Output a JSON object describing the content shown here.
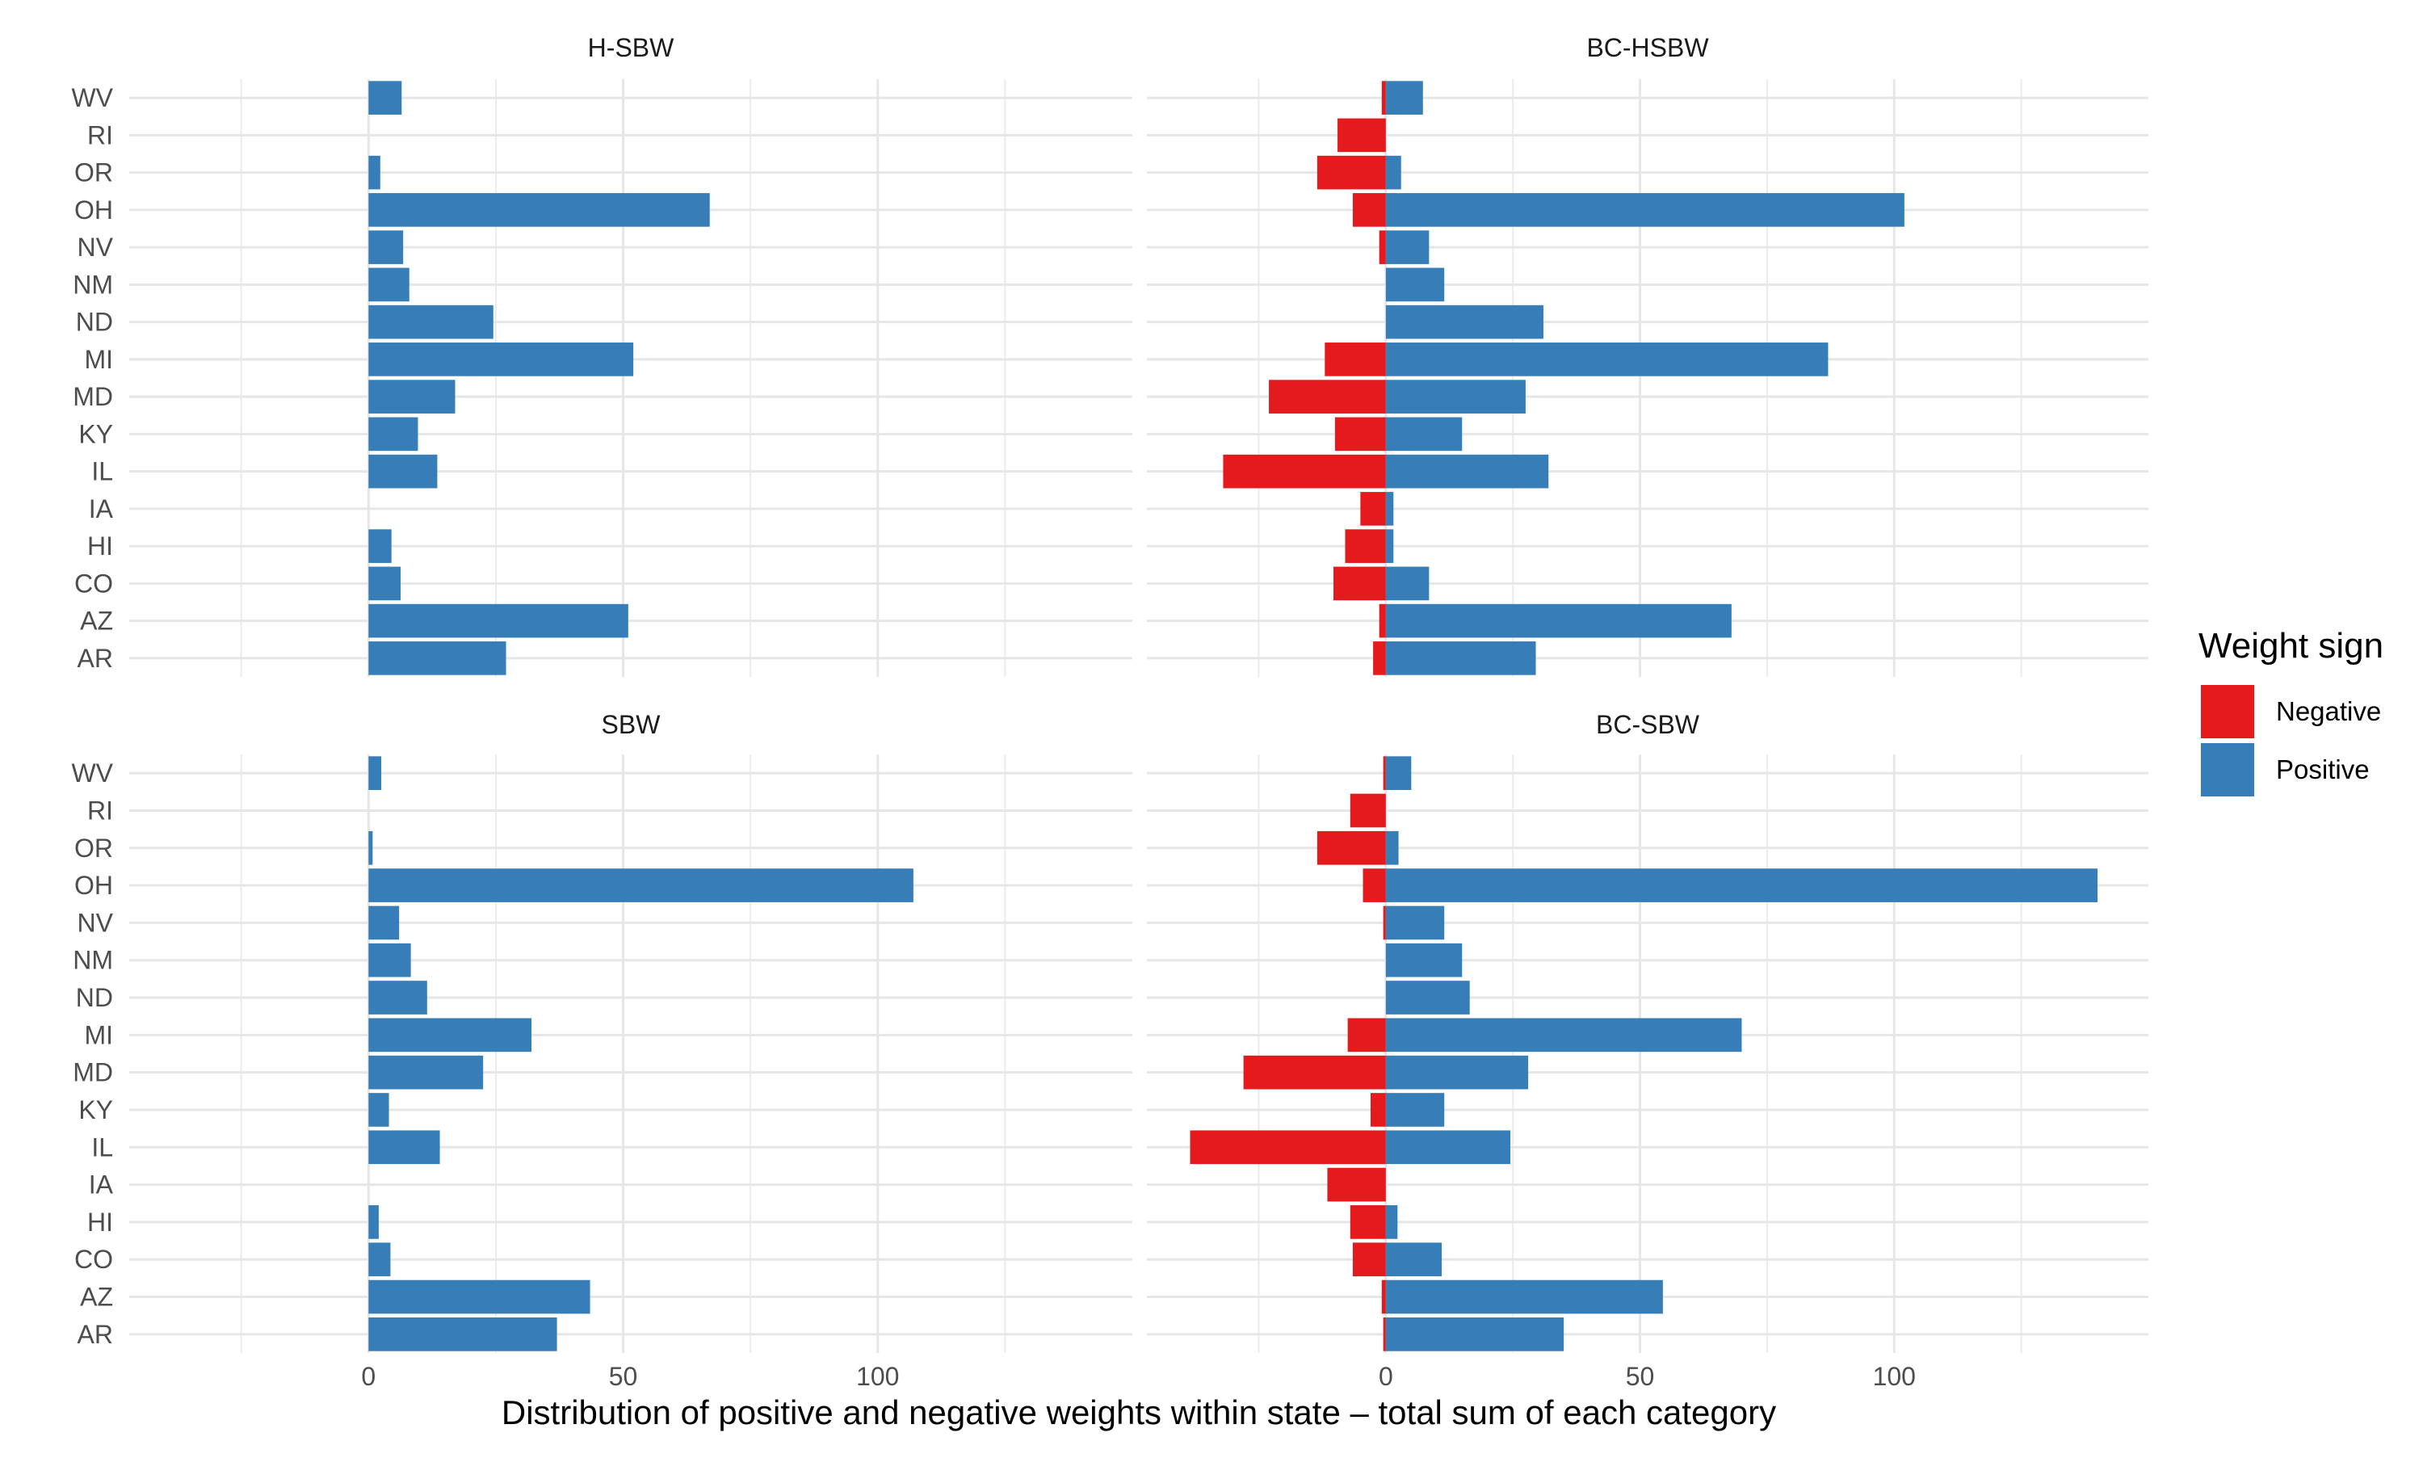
{
  "chart_data": {
    "type": "bar",
    "orientation": "horizontal",
    "layout": "2x2 facets",
    "xlabel": "Distribution of positive and negative weights within state – total sum of each category",
    "ylabel": "",
    "x_ticks": [
      0,
      50,
      100
    ],
    "grid": true,
    "legend": {
      "title": "Weight sign",
      "position": "right",
      "entries": [
        {
          "label": "Negative",
          "color": "#e41a1c"
        },
        {
          "label": "Positive",
          "color": "#377eb8"
        }
      ]
    },
    "categories": [
      "WV",
      "RI",
      "OR",
      "OH",
      "NV",
      "NM",
      "ND",
      "MI",
      "MD",
      "KY",
      "IL",
      "IA",
      "HI",
      "CO",
      "AZ",
      "AR"
    ],
    "panels": [
      {
        "title": "H-SBW",
        "xlim": [
          -47,
          150
        ],
        "series": [
          {
            "name": "Negative",
            "values": [
              0,
              0,
              0,
              0,
              0,
              0,
              0,
              0,
              0,
              0,
              0,
              0,
              0,
              0,
              0,
              0
            ]
          },
          {
            "name": "Positive",
            "values": [
              6.5,
              0,
              2.3,
              67,
              6.8,
              8,
              24.5,
              52,
              17,
              9.7,
              13.5,
              0,
              4.5,
              6.3,
              51,
              27
            ]
          }
        ]
      },
      {
        "title": "BC-HSBW",
        "xlim": [
          -47,
          150
        ],
        "series": [
          {
            "name": "Negative",
            "values": [
              -0.8,
              -9.5,
              -13.5,
              -6.5,
              -1.3,
              0,
              0,
              -12,
              -23,
              -10,
              -32,
              -5,
              -8,
              -10.3,
              -1.3,
              -2.5
            ]
          },
          {
            "name": "Positive",
            "values": [
              7.3,
              0,
              3,
              102,
              8.5,
              11.5,
              31,
              87,
              27.5,
              15,
              32,
              1.5,
              1.5,
              8.5,
              68,
              29.5
            ]
          }
        ]
      },
      {
        "title": "SBW",
        "xlim": [
          -47,
          150
        ],
        "series": [
          {
            "name": "Negative",
            "values": [
              0,
              0,
              0,
              0,
              0,
              0,
              0,
              0,
              0,
              0,
              0,
              0,
              0,
              0,
              0,
              0
            ]
          },
          {
            "name": "Positive",
            "values": [
              2.5,
              0,
              0.8,
              107,
              6,
              8.3,
              11.5,
              32,
              22.5,
              4,
              14,
              0,
              2,
              4.3,
              43.5,
              37
            ]
          }
        ]
      },
      {
        "title": "BC-SBW",
        "xlim": [
          -47,
          150
        ],
        "series": [
          {
            "name": "Negative",
            "values": [
              -0.5,
              -7,
              -13.5,
              -4.5,
              -0.5,
              0,
              0,
              -7.5,
              -28,
              -3,
              -38.5,
              -11.5,
              -7,
              -6.5,
              -0.8,
              -0.5
            ]
          },
          {
            "name": "Positive",
            "values": [
              5,
              0,
              2.5,
              140,
              11.5,
              15,
              16.5,
              70,
              28,
              11.5,
              24.5,
              0,
              2.3,
              11,
              54.5,
              35
            ]
          }
        ]
      }
    ]
  }
}
